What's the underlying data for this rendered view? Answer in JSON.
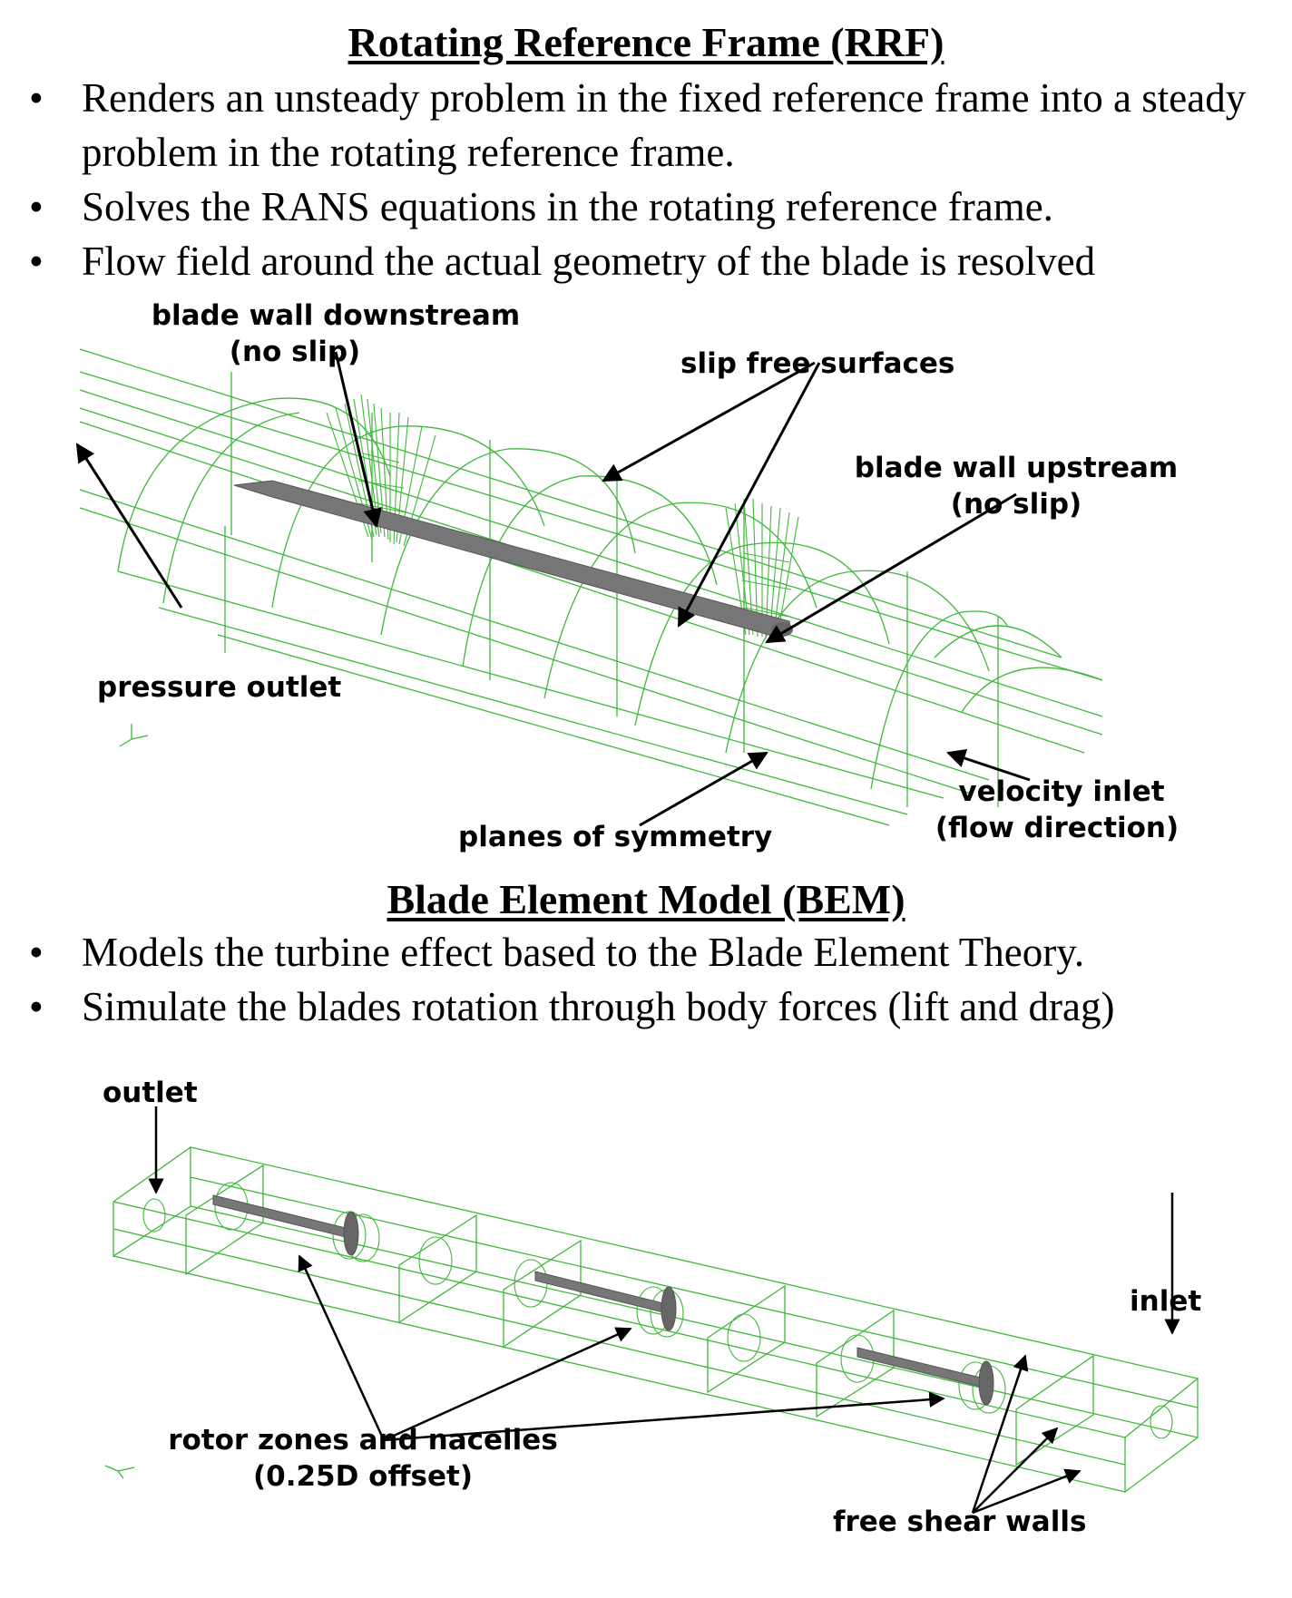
{
  "rrf": {
    "title": "Rotating Reference Frame (RRF)",
    "bullets": [
      "Renders an unsteady problem in the fixed reference frame into a steady problem in the rotating reference frame.",
      "Solves the RANS equations in the rotating reference frame.",
      "Flow field around the actual geometry of the blade is resolved"
    ],
    "labels": {
      "blade_wall_downstream": "blade wall downstream",
      "no_slip_1": "(no slip)",
      "slip_free_surfaces": "slip free surfaces",
      "blade_wall_upstream": "blade wall upstream",
      "no_slip_2": "(no slip)",
      "pressure_outlet": "pressure outlet",
      "velocity_inlet": "velocity inlet",
      "flow_direction": "(flow direction)",
      "planes_of_symmetry": "planes of symmetry"
    }
  },
  "bem": {
    "title": "Blade Element Model (BEM)",
    "bullets": [
      "Models the turbine effect based to the Blade Element Theory.",
      "Simulate the blades rotation through body forces (lift and drag)"
    ],
    "labels": {
      "outlet": "outlet",
      "inlet": "inlet",
      "rotor_zones": "rotor zones and nacelles",
      "offset": "(0.25D offset)",
      "free_shear_walls": "free shear walls"
    }
  },
  "colors": {
    "mesh": "#3fb83a",
    "mesh_light": "#8fd68a",
    "blade": "#777777",
    "arrow": "#000000"
  }
}
